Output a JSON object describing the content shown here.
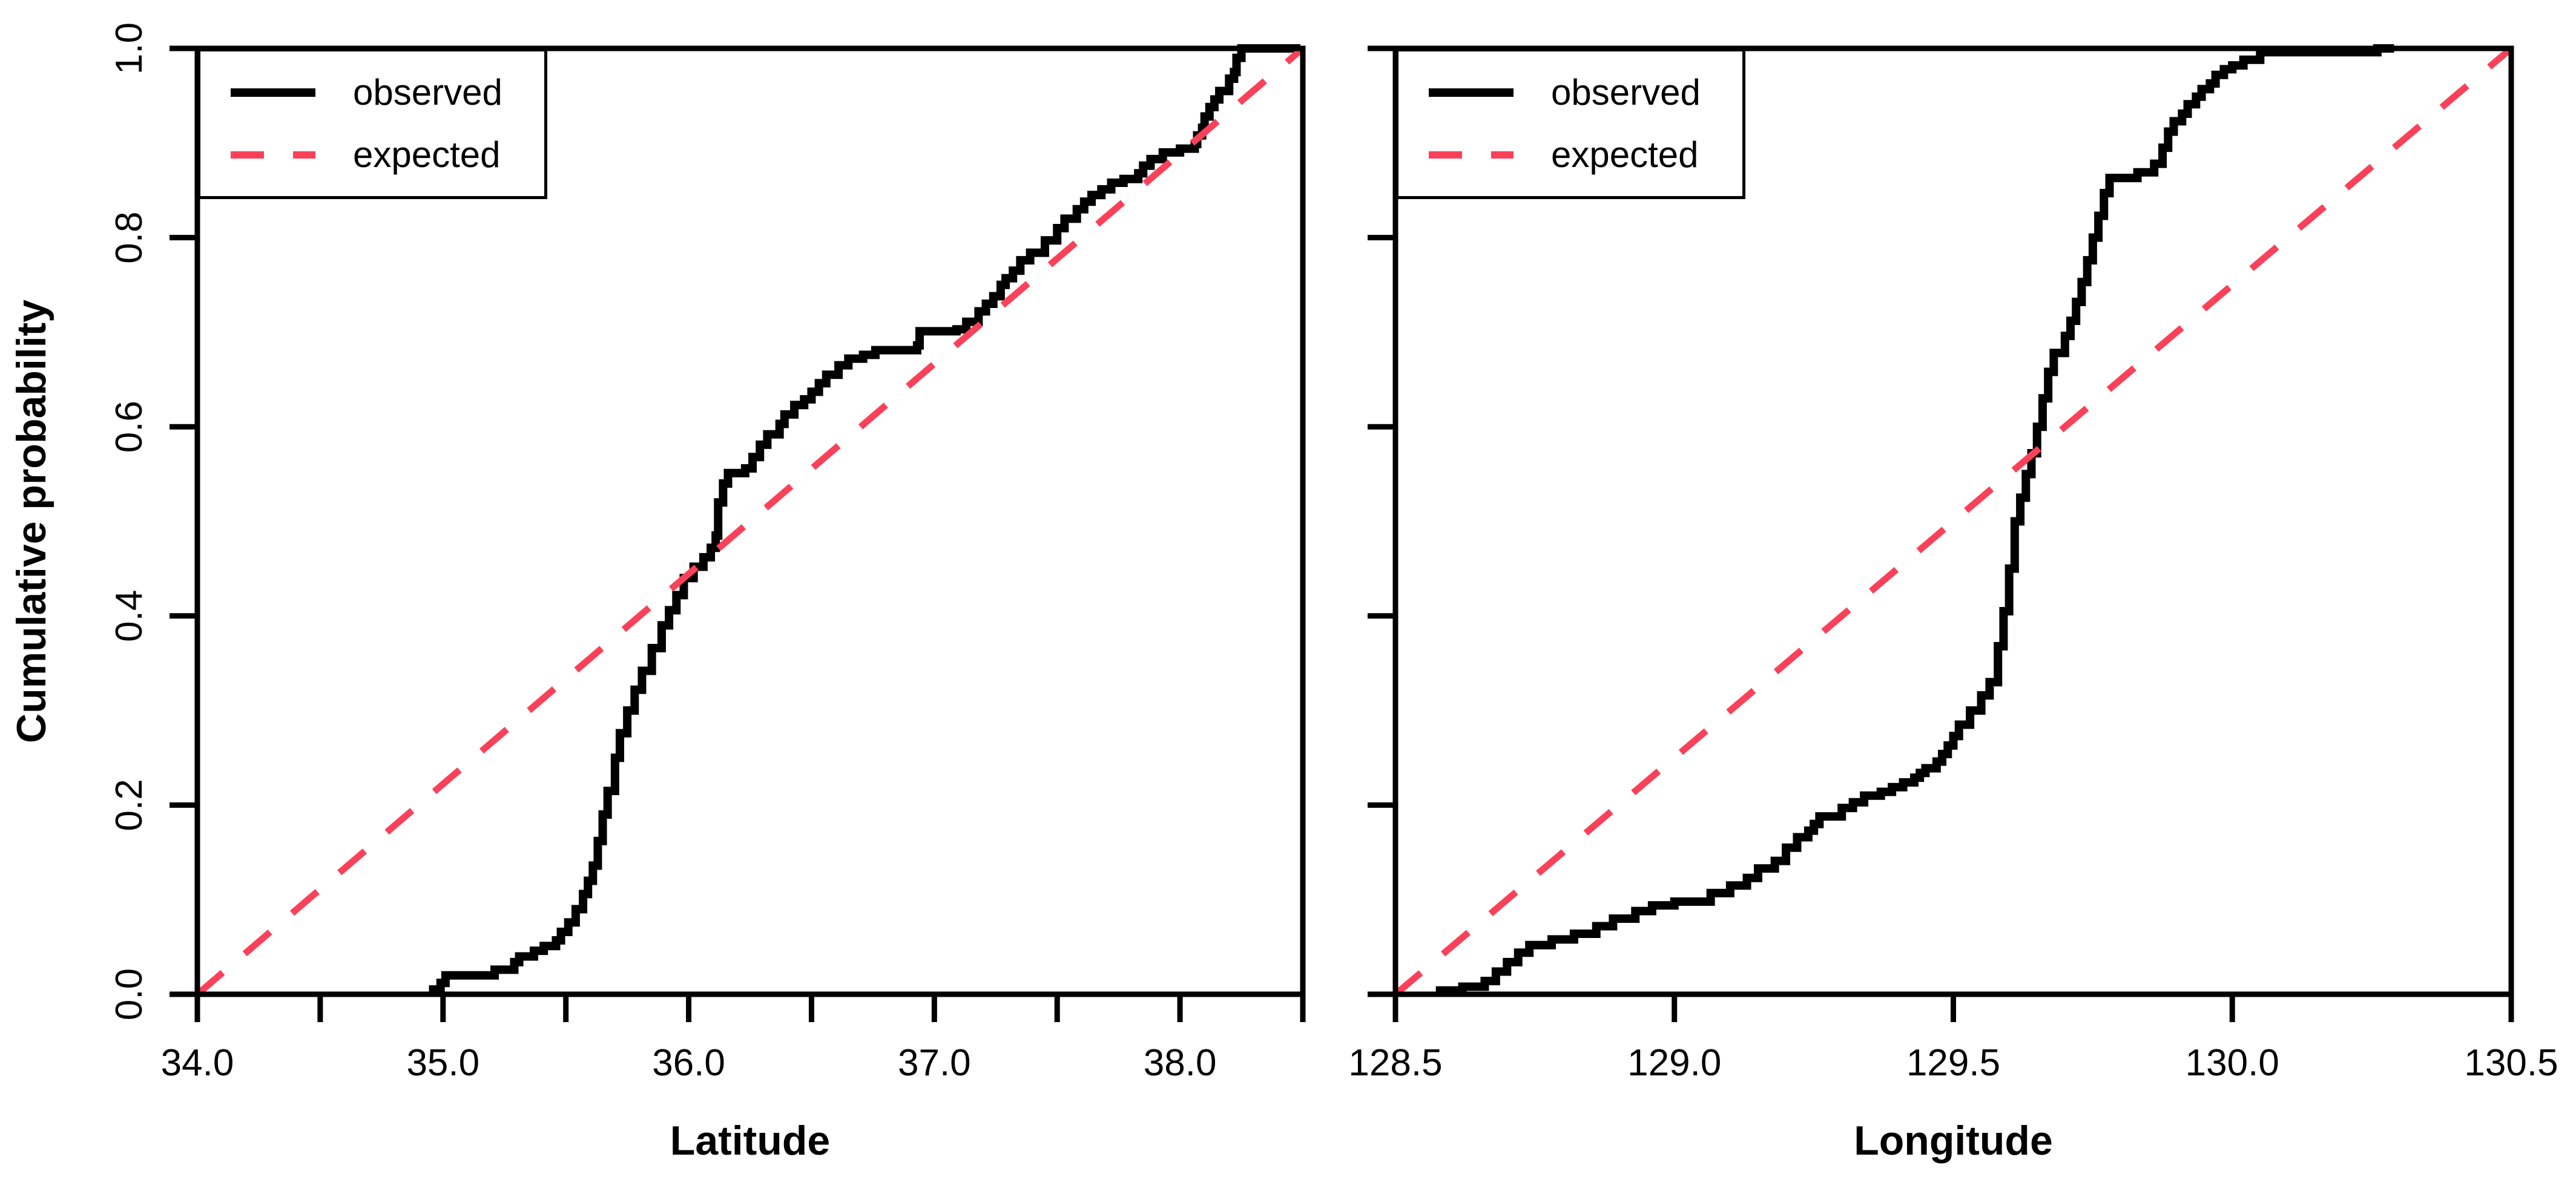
{
  "figure": {
    "background": "#ffffff",
    "observed_color": "#000000",
    "expected_color": "#FA4159"
  },
  "legend": {
    "items": [
      {
        "label": "observed",
        "style": "solid",
        "color": "#000000"
      },
      {
        "label": "expected",
        "style": "dashed",
        "color": "#FA4159"
      }
    ]
  },
  "chart_data": [
    {
      "type": "line",
      "subtype": "ecdf-step",
      "title": "",
      "xlabel": "Latitude",
      "ylabel": "Cumulative probability",
      "xlim": [
        34.0,
        38.5
      ],
      "ylim": [
        0.0,
        1.0
      ],
      "grid": false,
      "legend_position": "topleft",
      "xticks": {
        "positions": [
          34.0,
          34.5,
          35.0,
          35.5,
          36.0,
          36.5,
          37.0,
          37.5,
          38.0,
          38.5
        ],
        "labels": [
          "34.0",
          "",
          "35.0",
          "",
          "36.0",
          "",
          "37.0",
          "",
          "38.0",
          ""
        ]
      },
      "yticks": {
        "positions": [
          0.0,
          0.2,
          0.4,
          0.6,
          0.8,
          1.0
        ],
        "labels": [
          "0.0",
          "0.2",
          "0.4",
          "0.6",
          "0.8",
          "1.0"
        ],
        "show_labels": true
      },
      "series": [
        {
          "name": "observed",
          "draw": "step",
          "color": "#000000",
          "width": 14,
          "points": [
            [
              34.96,
              0.005
            ],
            [
              34.99,
              0.012
            ],
            [
              35.01,
              0.02
            ],
            [
              35.21,
              0.026
            ],
            [
              35.29,
              0.034
            ],
            [
              35.31,
              0.04
            ],
            [
              35.37,
              0.046
            ],
            [
              35.41,
              0.051
            ],
            [
              35.46,
              0.057
            ],
            [
              35.48,
              0.066
            ],
            [
              35.51,
              0.076
            ],
            [
              35.54,
              0.09
            ],
            [
              35.57,
              0.106
            ],
            [
              35.59,
              0.12
            ],
            [
              35.61,
              0.136
            ],
            [
              35.63,
              0.162
            ],
            [
              35.65,
              0.19
            ],
            [
              35.67,
              0.215
            ],
            [
              35.7,
              0.25
            ],
            [
              35.72,
              0.276
            ],
            [
              35.75,
              0.3
            ],
            [
              35.78,
              0.322
            ],
            [
              35.81,
              0.342
            ],
            [
              35.85,
              0.366
            ],
            [
              35.89,
              0.39
            ],
            [
              35.92,
              0.406
            ],
            [
              35.95,
              0.422
            ],
            [
              35.98,
              0.44
            ],
            [
              36.02,
              0.452
            ],
            [
              36.06,
              0.462
            ],
            [
              36.09,
              0.472
            ],
            [
              36.11,
              0.485
            ],
            [
              36.12,
              0.52
            ],
            [
              36.14,
              0.54
            ],
            [
              36.16,
              0.551
            ],
            [
              36.23,
              0.556
            ],
            [
              36.26,
              0.568
            ],
            [
              36.29,
              0.581
            ],
            [
              36.32,
              0.592
            ],
            [
              36.37,
              0.603
            ],
            [
              36.39,
              0.613
            ],
            [
              36.43,
              0.623
            ],
            [
              36.47,
              0.629
            ],
            [
              36.5,
              0.637
            ],
            [
              36.53,
              0.646
            ],
            [
              36.56,
              0.655
            ],
            [
              36.61,
              0.665
            ],
            [
              36.65,
              0.672
            ],
            [
              36.71,
              0.676
            ],
            [
              36.76,
              0.681
            ],
            [
              36.93,
              0.686
            ],
            [
              36.94,
              0.701
            ],
            [
              37.09,
              0.703
            ],
            [
              37.13,
              0.711
            ],
            [
              37.18,
              0.722
            ],
            [
              37.21,
              0.73
            ],
            [
              37.24,
              0.738
            ],
            [
              37.27,
              0.75
            ],
            [
              37.29,
              0.757
            ],
            [
              37.32,
              0.765
            ],
            [
              37.35,
              0.776
            ],
            [
              37.39,
              0.784
            ],
            [
              37.45,
              0.797
            ],
            [
              37.5,
              0.81
            ],
            [
              37.53,
              0.82
            ],
            [
              37.58,
              0.83
            ],
            [
              37.61,
              0.838
            ],
            [
              37.64,
              0.845
            ],
            [
              37.68,
              0.851
            ],
            [
              37.72,
              0.858
            ],
            [
              37.77,
              0.862
            ],
            [
              37.83,
              0.868
            ],
            [
              37.85,
              0.876
            ],
            [
              37.88,
              0.883
            ],
            [
              37.93,
              0.89
            ],
            [
              38.0,
              0.894
            ],
            [
              38.06,
              0.899
            ],
            [
              38.07,
              0.908
            ],
            [
              38.09,
              0.916
            ],
            [
              38.1,
              0.928
            ],
            [
              38.12,
              0.938
            ],
            [
              38.14,
              0.946
            ],
            [
              38.16,
              0.955
            ],
            [
              38.2,
              0.968
            ],
            [
              38.22,
              0.975
            ],
            [
              38.23,
              0.99
            ],
            [
              38.25,
              1.0
            ],
            [
              38.49,
              1.0
            ]
          ]
        },
        {
          "name": "expected",
          "draw": "line",
          "color": "#FA4159",
          "width": 11,
          "dash": [
            55,
            48
          ],
          "points": [
            [
              34.0,
              0.0
            ],
            [
              38.5,
              1.0
            ]
          ]
        }
      ]
    },
    {
      "type": "line",
      "subtype": "ecdf-step",
      "title": "",
      "xlabel": "Longitude",
      "ylabel": "",
      "xlim": [
        128.5,
        130.5
      ],
      "ylim": [
        0.0,
        1.0
      ],
      "grid": false,
      "legend_position": "topleft",
      "xticks": {
        "positions": [
          128.5,
          129.0,
          129.5,
          130.0,
          130.5
        ],
        "labels": [
          "128.5",
          "129.0",
          "129.5",
          "130.0",
          "130.5"
        ]
      },
      "yticks": {
        "positions": [
          0.0,
          0.2,
          0.4,
          0.6,
          0.8,
          1.0
        ],
        "labels": [
          "0.0",
          "0.2",
          "0.4",
          "0.6",
          "0.8",
          "1.0"
        ],
        "show_labels": false
      },
      "series": [
        {
          "name": "observed",
          "draw": "step",
          "color": "#000000",
          "width": 14,
          "points": [
            [
              128.58,
              0.004
            ],
            [
              128.62,
              0.008
            ],
            [
              128.66,
              0.014
            ],
            [
              128.68,
              0.024
            ],
            [
              128.7,
              0.034
            ],
            [
              128.72,
              0.044
            ],
            [
              128.74,
              0.052
            ],
            [
              128.78,
              0.058
            ],
            [
              128.82,
              0.064
            ],
            [
              128.86,
              0.072
            ],
            [
              128.89,
              0.08
            ],
            [
              128.93,
              0.088
            ],
            [
              128.96,
              0.094
            ],
            [
              129.0,
              0.098
            ],
            [
              129.065,
              0.107
            ],
            [
              129.1,
              0.115
            ],
            [
              129.13,
              0.123
            ],
            [
              129.15,
              0.133
            ],
            [
              129.18,
              0.141
            ],
            [
              129.2,
              0.155
            ],
            [
              129.22,
              0.166
            ],
            [
              129.24,
              0.173
            ],
            [
              129.25,
              0.18
            ],
            [
              129.26,
              0.188
            ],
            [
              129.3,
              0.197
            ],
            [
              129.32,
              0.203
            ],
            [
              129.34,
              0.21
            ],
            [
              129.37,
              0.214
            ],
            [
              129.39,
              0.219
            ],
            [
              129.41,
              0.224
            ],
            [
              129.43,
              0.229
            ],
            [
              129.44,
              0.234
            ],
            [
              129.45,
              0.239
            ],
            [
              129.47,
              0.246
            ],
            [
              129.48,
              0.254
            ],
            [
              129.49,
              0.263
            ],
            [
              129.5,
              0.273
            ],
            [
              129.51,
              0.285
            ],
            [
              129.53,
              0.3
            ],
            [
              129.55,
              0.316
            ],
            [
              129.565,
              0.33
            ],
            [
              129.58,
              0.368
            ],
            [
              129.59,
              0.405
            ],
            [
              129.6,
              0.45
            ],
            [
              129.61,
              0.5
            ],
            [
              129.62,
              0.525
            ],
            [
              129.63,
              0.55
            ],
            [
              129.64,
              0.572
            ],
            [
              129.65,
              0.6
            ],
            [
              129.66,
              0.63
            ],
            [
              129.67,
              0.658
            ],
            [
              129.68,
              0.678
            ],
            [
              129.7,
              0.696
            ],
            [
              129.71,
              0.712
            ],
            [
              129.72,
              0.732
            ],
            [
              129.73,
              0.753
            ],
            [
              129.74,
              0.776
            ],
            [
              129.75,
              0.8
            ],
            [
              129.76,
              0.823
            ],
            [
              129.77,
              0.847
            ],
            [
              129.78,
              0.863
            ],
            [
              129.83,
              0.869
            ],
            [
              129.86,
              0.878
            ],
            [
              129.875,
              0.895
            ],
            [
              129.885,
              0.912
            ],
            [
              129.895,
              0.923
            ],
            [
              129.91,
              0.931
            ],
            [
              129.92,
              0.941
            ],
            [
              129.935,
              0.949
            ],
            [
              129.945,
              0.957
            ],
            [
              129.96,
              0.963
            ],
            [
              129.97,
              0.972
            ],
            [
              129.985,
              0.978
            ],
            [
              130.0,
              0.982
            ],
            [
              130.02,
              0.988
            ],
            [
              130.05,
              0.996
            ],
            [
              130.26,
              1.0
            ],
            [
              130.29,
              1.0
            ]
          ]
        },
        {
          "name": "expected",
          "draw": "line",
          "color": "#FA4159",
          "width": 11,
          "dash": [
            55,
            48
          ],
          "points": [
            [
              128.5,
              0.0
            ],
            [
              130.5,
              1.0
            ]
          ]
        }
      ]
    }
  ]
}
